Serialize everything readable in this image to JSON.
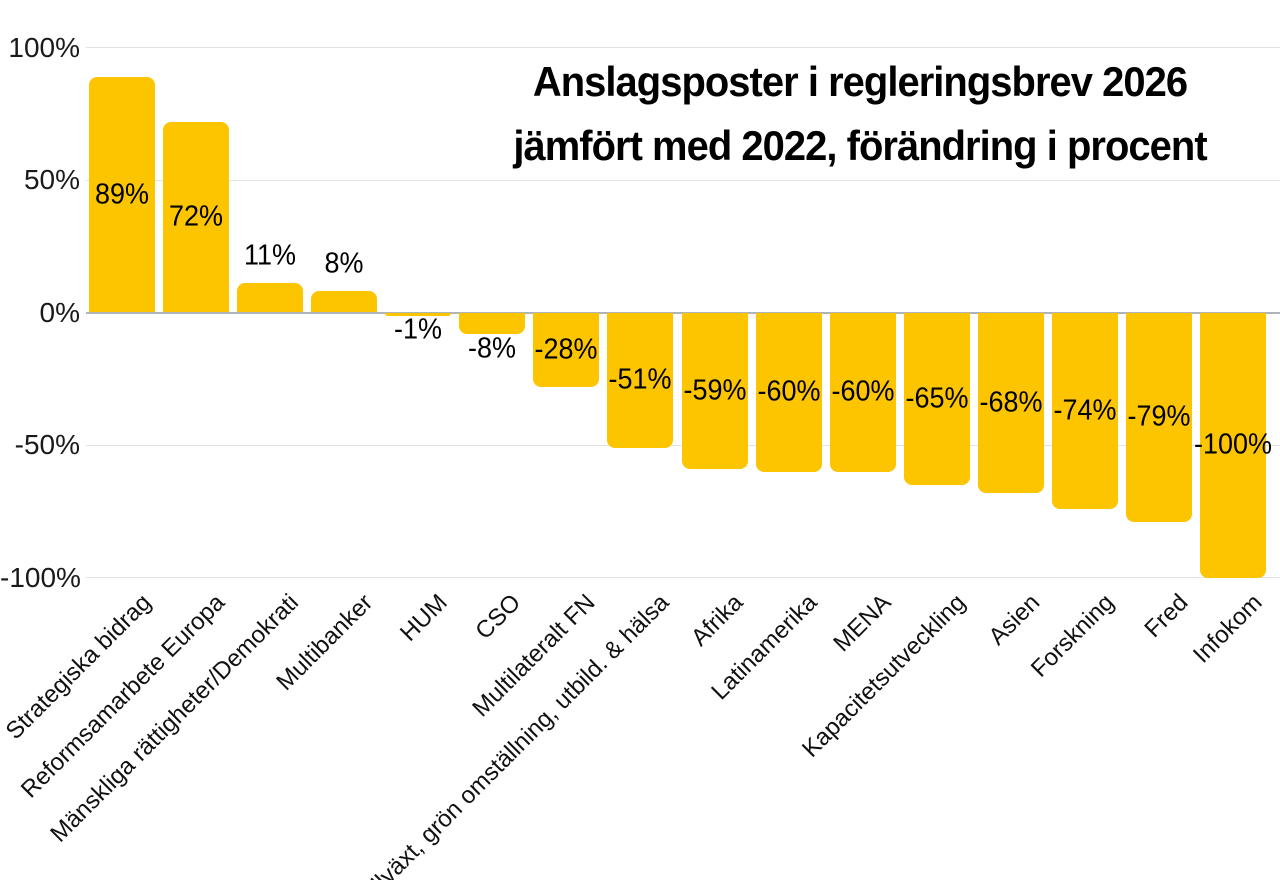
{
  "chart_data": {
    "type": "bar",
    "title_line1": "Anslagsposter i regleringsbrev 2026",
    "title_line2": "jämfört med 2022, förändring i procent",
    "categories": [
      "Strategiska bidrag",
      "Reformsamarbete Europa",
      "Mänskliga rättigheter/Demokrati",
      "Multibanker",
      "HUM",
      "CSO",
      "Multilateralt FN",
      "Tillväxt, grön omställning, utbild. & hälsa",
      "Afrika",
      "Latinamerika",
      "MENA",
      "Kapacitetsutveckling",
      "Asien",
      "Forskning",
      "Fred",
      "Infokom"
    ],
    "values": [
      89,
      72,
      11,
      8,
      -1,
      -8,
      -28,
      -51,
      -59,
      -60,
      -60,
      -65,
      -68,
      -74,
      -79,
      -100
    ],
    "value_labels": [
      "89%",
      "72%",
      "11%",
      "8%",
      "-1%",
      "-8%",
      "-28%",
      "-51%",
      "-59%",
      "-60%",
      "-60%",
      "-65%",
      "-68%",
      "-74%",
      "-79%",
      "-100%"
    ],
    "xlabel": "",
    "ylabel": "",
    "y_axis": {
      "tick_values": [
        100,
        50,
        0,
        -50,
        -100
      ],
      "tick_labels": [
        "100%",
        "50%",
        "0%",
        "-50%",
        "-100%"
      ],
      "range": [
        -100,
        100
      ]
    },
    "grid": "horizontal",
    "legend": "none",
    "colors": {
      "bar": "#FCC500",
      "grid_line": "#E2E2E2",
      "zero_line": "#AFB4BA",
      "value_text": "#000000",
      "title_text": "#000000"
    }
  }
}
